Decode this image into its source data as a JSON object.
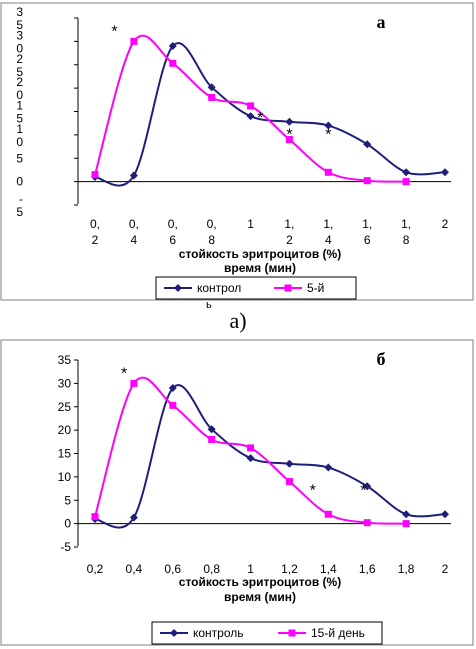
{
  "colors": {
    "control": "#1f1f7a",
    "experimental": "#ff00ff",
    "frame": "#808080",
    "text": "#000000"
  },
  "chart_data": [
    {
      "type": "line",
      "panel_label": "а",
      "xlabel": "стойкость эритроцитов (%)",
      "xlabel2": "время (мин)",
      "x_tick_labels": [
        [
          "0,",
          "2"
        ],
        [
          "0,",
          "4"
        ],
        [
          "0,",
          "6"
        ],
        [
          "0,",
          "8"
        ],
        [
          "1",
          ""
        ],
        [
          "1,",
          "2"
        ],
        [
          "1,",
          "4"
        ],
        [
          "1,",
          "6"
        ],
        [
          "1,",
          "8"
        ],
        [
          "2",
          ""
        ]
      ],
      "x_ticks": [
        0.2,
        0.4,
        0.6,
        0.8,
        1.0,
        1.2,
        1.4,
        1.6,
        1.8,
        2.0
      ],
      "y_tick_labels": [
        [
          "-",
          "5"
        ],
        [
          "0",
          ""
        ],
        [
          "5"
        ],
        [
          "1",
          "0"
        ],
        [
          "1",
          "5"
        ],
        [
          "2",
          "0"
        ],
        [
          "2",
          "5"
        ],
        [
          "3",
          "0"
        ],
        [
          "3",
          "5"
        ]
      ],
      "ylim": [
        -5,
        35
      ],
      "xlim": [
        0.2,
        2.0
      ],
      "series": [
        {
          "name": "контрол",
          "legend_extra": "ь",
          "marker": "diamond",
          "x": [
            0.2,
            0.4,
            0.6,
            0.8,
            1.0,
            1.2,
            1.4,
            1.6,
            1.8,
            2.0
          ],
          "y": [
            1,
            1.3,
            29,
            20.2,
            14,
            12.8,
            12,
            8,
            2,
            2
          ]
        },
        {
          "name": "5-й",
          "marker": "square",
          "x": [
            0.2,
            0.4,
            0.6,
            0.8,
            1.0,
            1.2,
            1.4,
            1.6,
            1.8
          ],
          "y": [
            1.5,
            30,
            25.3,
            18,
            16.2,
            9,
            2,
            0.2,
            0
          ]
        }
      ],
      "annotations": [
        {
          "text": "*",
          "x": 0.3,
          "y": 31
        },
        {
          "text": "*",
          "x": 1.05,
          "y": 12.5
        },
        {
          "text": "*",
          "x": 1.2,
          "y": 9
        },
        {
          "text": "*",
          "x": 1.4,
          "y": 9
        }
      ]
    },
    {
      "type": "line",
      "panel_label": "б",
      "xlabel": "стойкость эритроцитов (%)",
      "xlabel2": "время (мин)",
      "x_tick_labels": [
        [
          "0,2"
        ],
        [
          "0,4"
        ],
        [
          "0,6"
        ],
        [
          "0,8"
        ],
        [
          "1"
        ],
        [
          "1,2"
        ],
        [
          "1,4"
        ],
        [
          "1,6"
        ],
        [
          "1,8"
        ],
        [
          "2"
        ]
      ],
      "x_ticks": [
        0.2,
        0.4,
        0.6,
        0.8,
        1.0,
        1.2,
        1.4,
        1.6,
        1.8,
        2.0
      ],
      "y_tick_labels": [
        [
          "-5"
        ],
        [
          "0"
        ],
        [
          "5"
        ],
        [
          "10"
        ],
        [
          "15"
        ],
        [
          "20"
        ],
        [
          "25"
        ],
        [
          "30"
        ],
        [
          "35"
        ]
      ],
      "ylim": [
        -5,
        35
      ],
      "xlim": [
        0.2,
        2.0
      ],
      "series": [
        {
          "name": "контроль",
          "marker": "diamond",
          "x": [
            0.2,
            0.4,
            0.6,
            0.8,
            1.0,
            1.2,
            1.4,
            1.6,
            1.8,
            2.0
          ],
          "y": [
            1,
            1.3,
            29,
            20.2,
            14,
            12.8,
            12,
            8,
            2,
            2
          ]
        },
        {
          "name": "15-й день",
          "marker": "square",
          "x": [
            0.2,
            0.4,
            0.6,
            0.8,
            1.0,
            1.2,
            1.4,
            1.6,
            1.8
          ],
          "y": [
            1.5,
            30,
            25.3,
            18,
            16.2,
            9,
            2,
            0.2,
            0
          ]
        }
      ],
      "annotations": [
        {
          "text": "*",
          "x": 0.35,
          "y": 31
        },
        {
          "text": "*",
          "x": 1.32,
          "y": 6
        },
        {
          "text": "*",
          "x": 1.58,
          "y": 6
        }
      ]
    }
  ],
  "separator_label": "а)"
}
